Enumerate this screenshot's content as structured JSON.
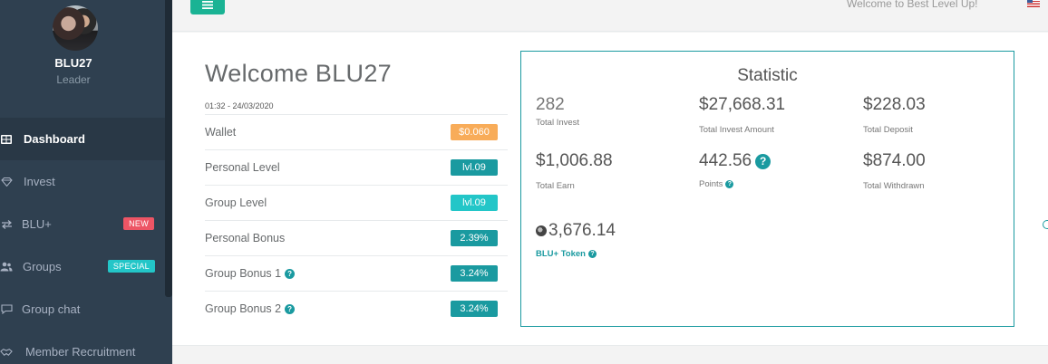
{
  "sidebar": {
    "user_name": "BLU27",
    "user_role": "Leader",
    "items": [
      {
        "label": "Dashboard",
        "icon": "dashboard-icon",
        "active": true
      },
      {
        "label": "Invest",
        "icon": "diamond-icon"
      },
      {
        "label": "BLU+",
        "icon": "exchange-icon",
        "badge": "NEW"
      },
      {
        "label": "Groups",
        "icon": "users-icon",
        "badge": "SPECIAL"
      },
      {
        "label": "Group chat",
        "icon": "chat-icon"
      },
      {
        "label": "Member Recruitment",
        "icon": "handshake-icon"
      }
    ]
  },
  "topbar": {
    "welcome_msg": "Welcome to Best Level Up!",
    "flag": "us-flag-icon"
  },
  "welcome": {
    "title": "Welcome BLU27",
    "datetime": "01:32 - 24/03/2020",
    "rows": [
      {
        "label": "Wallet",
        "value": "$0.060",
        "color": "#f8ac59"
      },
      {
        "label": "Personal Level",
        "value": "lvl.09",
        "color": "#1a9aa0"
      },
      {
        "label": "Group Level",
        "value": "lvl.09",
        "color": "#23c6c8"
      },
      {
        "label": "Personal Bonus",
        "value": "2.39%",
        "color": "#1a9aa0"
      },
      {
        "label": "Group Bonus 1",
        "value": "3.24%",
        "color": "#1a9aa0",
        "help": true
      },
      {
        "label": "Group Bonus 2",
        "value": "3.24%",
        "color": "#1a9aa0",
        "help": true
      }
    ]
  },
  "statistic": {
    "title": "Statistic",
    "total_invest": {
      "value": "282",
      "label": "Total Invest"
    },
    "total_invest_amount": {
      "value": "$27,668.31",
      "label": "Total Invest Amount"
    },
    "total_deposit": {
      "value": "$228.03",
      "label": "Total Deposit"
    },
    "total_earn": {
      "value": "$1,006.88",
      "label": "Total Earn"
    },
    "points": {
      "value": "442.56",
      "label": "Points"
    },
    "total_withdrawn": {
      "value": "$874.00",
      "label": "Total Withdrawn"
    },
    "blu_token": {
      "value": "3,676.14",
      "label": "BLU+ Token"
    }
  },
  "colors": {
    "sidebar": "#2f4050",
    "accent": "#1a9aa0",
    "menu_button": "#1ab394"
  }
}
